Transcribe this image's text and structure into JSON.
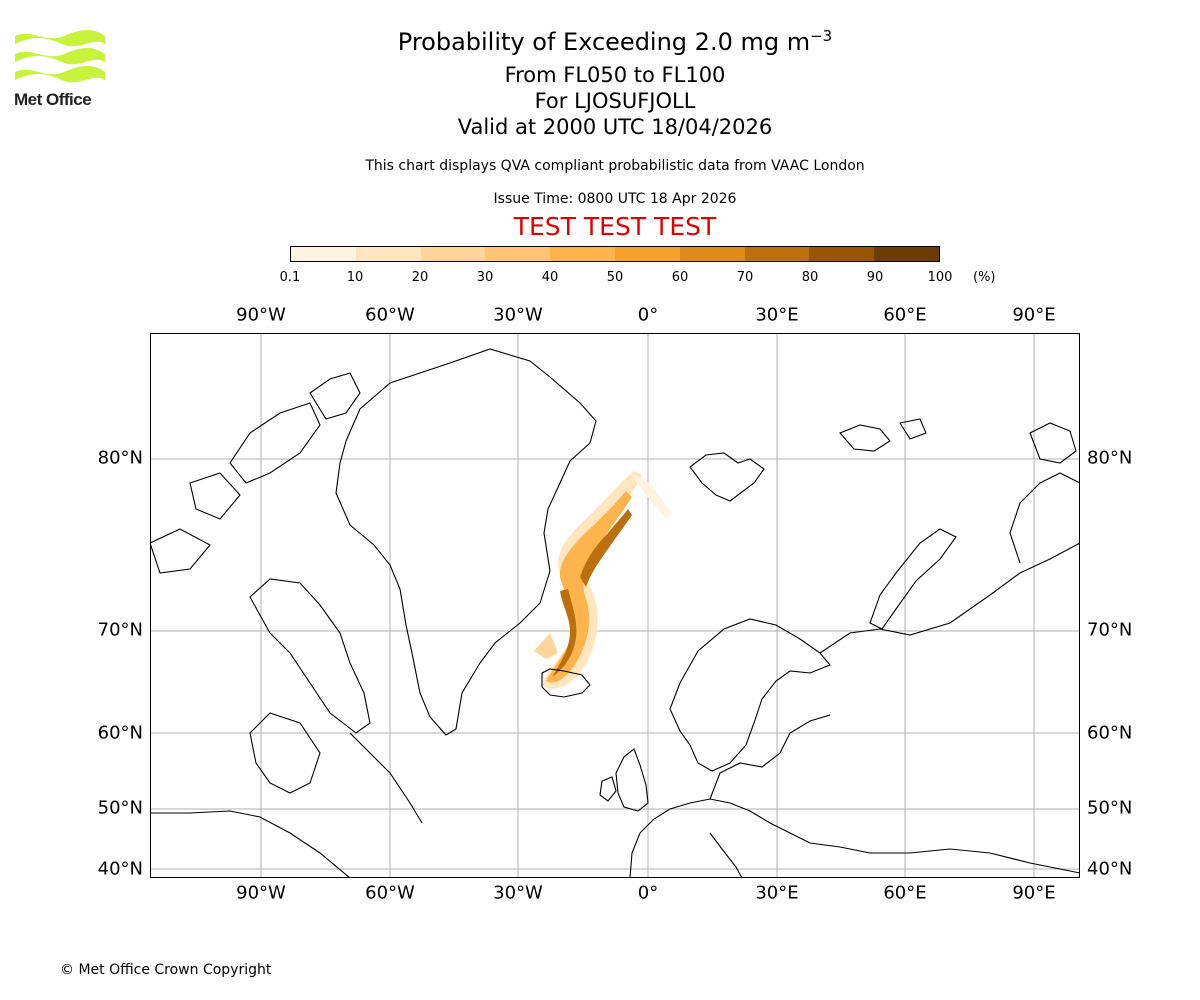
{
  "logo": {
    "text": "Met Office",
    "color": "#c8f23c"
  },
  "title": {
    "main": "Probability of Exceeding 2.0 mg m",
    "superscript": "−3",
    "levels": "From FL050 to FL100",
    "volcano": "For LJOSUFJOLL",
    "valid": "Valid at 2000 UTC 18/04/2026"
  },
  "subtitle": "This chart displays QVA compliant probabilistic data from VAAC London",
  "issue_time": "Issue Time: 0800 UTC 18 Apr 2026",
  "test_banner": "TEST TEST TEST",
  "colorbar": {
    "ticks": [
      "0.1",
      "10",
      "20",
      "30",
      "40",
      "50",
      "60",
      "70",
      "80",
      "90",
      "100"
    ],
    "unit": "(%)",
    "colors": [
      "#fff4e2",
      "#ffe6c0",
      "#ffd59a",
      "#ffc574",
      "#fdb44d",
      "#f6a12a",
      "#dd8a19",
      "#bb6f0e",
      "#965606",
      "#6b3d05"
    ]
  },
  "map": {
    "lon_labels": [
      "90°W",
      "60°W",
      "30°W",
      "0°",
      "30°E",
      "60°E",
      "90°E"
    ],
    "lat_labels": [
      "80°N",
      "70°N",
      "60°N",
      "50°N",
      "40°N"
    ],
    "coast_color": "#000000",
    "grid_color": "#b0b0b0"
  },
  "copyright": "© Met Office Crown Copyright"
}
